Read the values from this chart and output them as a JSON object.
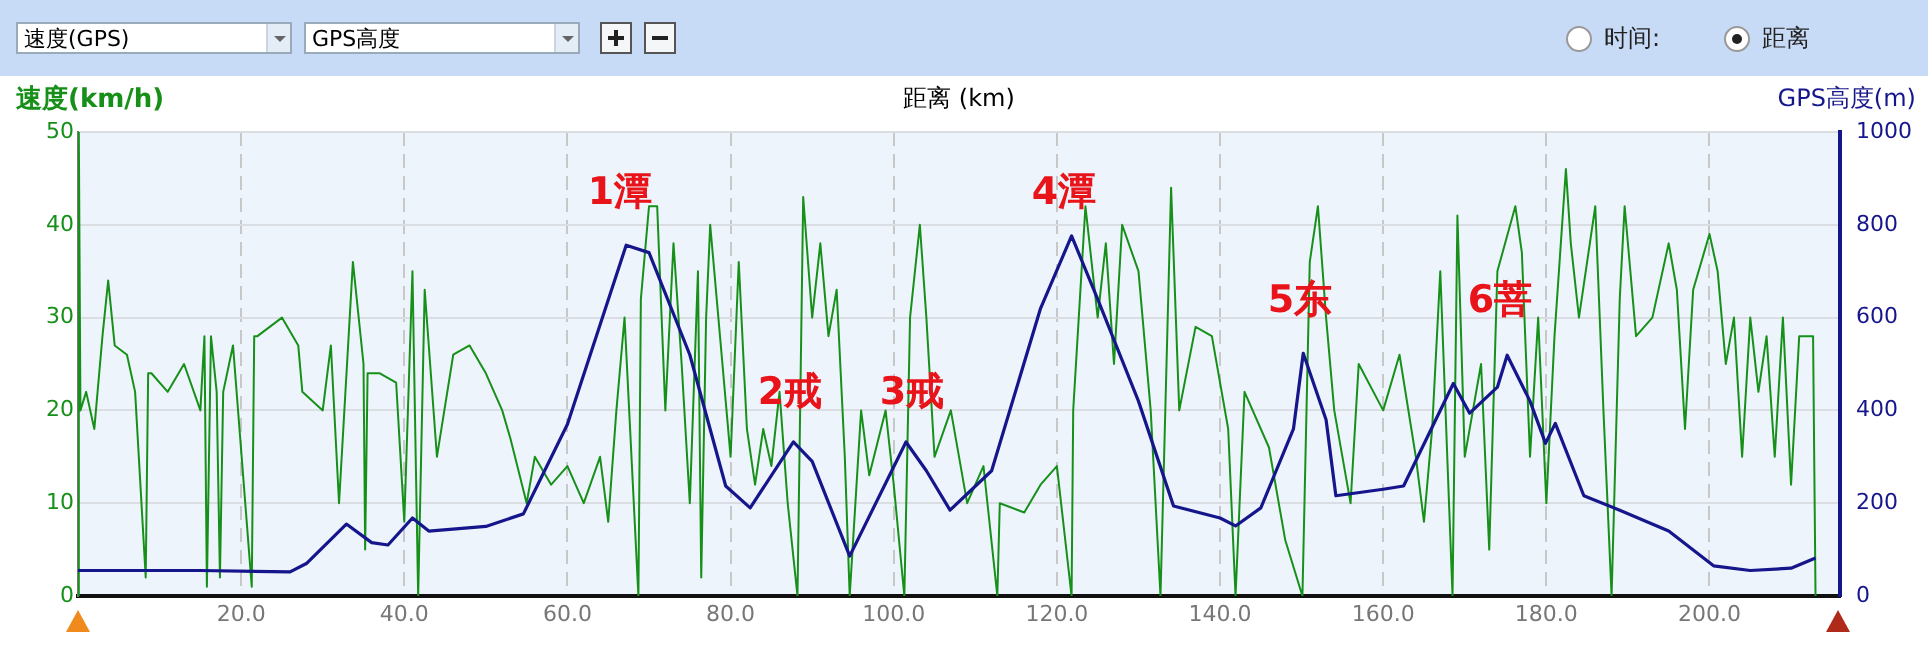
{
  "chart_data": {
    "type": "line",
    "xlabel": "距离 (km)",
    "ylabel": "速度(km/h)",
    "y2label": "GPS高度(m)",
    "annotations": [
      "速度(GPS)",
      "GPS高度",
      "时间:",
      "距离",
      "1潭",
      "2戒",
      "3戒",
      "4潭",
      "5东",
      "6菩"
    ],
    "series": [
      {
        "color": "#17901a",
        "axis": "y",
        "x": [
          0,
          0.1,
          0.3,
          1,
          2,
          3,
          3.7,
          4.5,
          6,
          7,
          8.3,
          8.6,
          9,
          11,
          13,
          15,
          15.5,
          15.8,
          16.3,
          17,
          17.4,
          17.8,
          19,
          21.3,
          21.6,
          22,
          25,
          27,
          27.5,
          30,
          31,
          32,
          33.7,
          35,
          35.2,
          35.5,
          37,
          39,
          40,
          41,
          41.7,
          42.5,
          44,
          46,
          48,
          50,
          52,
          53,
          55,
          56,
          58,
          60,
          62,
          64,
          65,
          66,
          67,
          68.7,
          69,
          70,
          71,
          72,
          73,
          74,
          75,
          76,
          76.4,
          77,
          77.5,
          80,
          81,
          82,
          83,
          84,
          85,
          86,
          87,
          88.2,
          88.9,
          90,
          91,
          92,
          93,
          94,
          94.6,
          96,
          97,
          99,
          100,
          101.3,
          102,
          103.2,
          104,
          105,
          107,
          109,
          111,
          112.7,
          113,
          116,
          118,
          120,
          121.8,
          122,
          123.5,
          125,
          126,
          127,
          128,
          130,
          131.5,
          132.7,
          134,
          135,
          137,
          139,
          141,
          141.9,
          143,
          146,
          148,
          150.1,
          151,
          152,
          153,
          154,
          156,
          157,
          160,
          162,
          164,
          165,
          166,
          167,
          168.5,
          169.1,
          170,
          172,
          173,
          174,
          176.2,
          177,
          178,
          179,
          180,
          181,
          182.4,
          183,
          184,
          186,
          187,
          188,
          189,
          189.6,
          191,
          193,
          195,
          196,
          197,
          198,
          200,
          201,
          202,
          203,
          204,
          205,
          206,
          207,
          208,
          209,
          210,
          211,
          212.7,
          213
        ],
        "values": [
          0,
          50,
          20,
          22,
          18,
          28,
          34,
          27,
          26,
          22,
          2,
          24,
          24,
          22,
          25,
          20,
          28,
          1,
          28,
          22,
          2,
          22,
          27,
          1,
          28,
          28,
          30,
          27,
          22,
          20,
          27,
          10,
          36,
          25,
          5,
          24,
          24,
          23,
          8,
          35,
          0,
          33,
          15,
          26,
          27,
          24,
          20,
          17,
          10,
          15,
          12,
          14,
          10,
          15,
          8,
          20,
          30,
          0,
          32,
          42,
          42,
          20,
          38,
          25,
          10,
          35,
          2,
          30,
          40,
          15,
          36,
          18,
          12,
          18,
          14,
          22,
          10,
          0,
          43,
          30,
          38,
          28,
          33,
          15,
          0,
          20,
          13,
          20,
          12,
          0,
          30,
          40,
          30,
          15,
          20,
          10,
          14,
          0,
          10,
          9,
          12,
          14,
          0,
          20,
          42,
          30,
          38,
          25,
          40,
          35,
          20,
          0,
          44,
          20,
          29,
          28,
          18,
          0,
          22,
          16,
          6,
          0,
          36,
          42,
          30,
          20,
          10,
          25,
          20,
          26,
          15,
          8,
          18,
          35,
          0,
          41,
          15,
          25,
          5,
          35,
          42,
          37,
          15,
          30,
          10,
          28,
          46,
          38,
          30,
          42,
          20,
          0,
          32,
          42,
          28,
          30,
          38,
          33,
          18,
          33,
          39,
          35,
          25,
          30,
          15,
          30,
          22,
          28,
          15,
          30,
          12,
          28,
          28,
          0
        ]
      },
      {
        "color": "#16168c",
        "axis": "y2",
        "x": [
          0,
          15,
          26,
          28,
          32.9,
          36,
          38,
          41,
          43,
          50,
          54.6,
          60,
          67.2,
          70,
          75,
          79.4,
          82.4,
          87.7,
          90,
          94.6,
          101.5,
          104,
          106.9,
          112,
          118,
          121.8,
          125,
          130,
          134.3,
          140,
          141.9,
          145,
          149,
          150.2,
          153,
          154.2,
          160,
          162.5,
          168.6,
          170.6,
          174,
          175.2,
          178,
          179.9,
          181.1,
          184.6,
          189,
          195,
          200.5,
          205,
          210,
          213
        ],
        "values": [
          55,
          55,
          52,
          70,
          155,
          115,
          110,
          168,
          140,
          150,
          177,
          370,
          756,
          740,
          520,
          237,
          190,
          332,
          290,
          86,
          332,
          270,
          185,
          270,
          620,
          776,
          640,
          420,
          194,
          168,
          151,
          190,
          360,
          523,
          380,
          216,
          230,
          237,
          458,
          394,
          450,
          519,
          420,
          329,
          372,
          216,
          185,
          140,
          65,
          55,
          60,
          82
        ]
      }
    ],
    "xlim": [
      0,
      216
    ],
    "xticks": [
      {
        "value": 20,
        "label": "20.0"
      },
      {
        "value": 40,
        "label": "40.0"
      },
      {
        "value": 60,
        "label": "60.0"
      },
      {
        "value": 80,
        "label": "80.0"
      },
      {
        "value": 100,
        "label": "100.0"
      },
      {
        "value": 120,
        "label": "120.0"
      },
      {
        "value": 140,
        "label": "140.0"
      },
      {
        "value": 160,
        "label": "160.0"
      },
      {
        "value": 180,
        "label": "180.0"
      },
      {
        "value": 200,
        "label": "200.0"
      }
    ],
    "ylim": [
      0,
      50
    ],
    "yticks": [
      0,
      10,
      20,
      30,
      40,
      50
    ],
    "y2lim": [
      0,
      1000
    ],
    "y2ticks": [
      0,
      200,
      400,
      600,
      800,
      1000
    ],
    "grid": true
  }
}
